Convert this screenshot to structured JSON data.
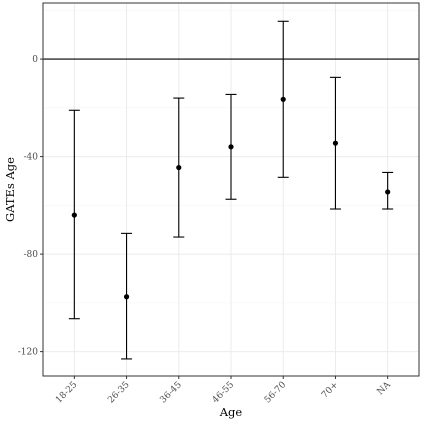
{
  "chart_data": {
    "type": "scatter",
    "xlabel": "Age",
    "ylabel": "GATEs Age",
    "categories": [
      "18-25",
      "26-35",
      "36-45",
      "46-55",
      "56-70",
      "70+",
      "NA"
    ],
    "estimates": [
      -64,
      -97.5,
      -44.5,
      -36,
      -16.5,
      -34.5,
      -54.5
    ],
    "ci_lower": [
      -106.5,
      -123,
      -73,
      -57.5,
      -48.5,
      -61.5,
      -61.5
    ],
    "ci_upper": [
      -21,
      -71.5,
      -16,
      -14.5,
      15.5,
      -7.5,
      -46.5
    ],
    "ylim": [
      -130,
      23
    ],
    "yticks": [
      0,
      -40,
      -80,
      -120
    ],
    "reference_line": 0,
    "grid": true,
    "colors": {
      "panel_border": "#333333",
      "grid_major": "#ebebeb",
      "grid_minor": "#f5f5f5",
      "marks": "#000000"
    }
  }
}
